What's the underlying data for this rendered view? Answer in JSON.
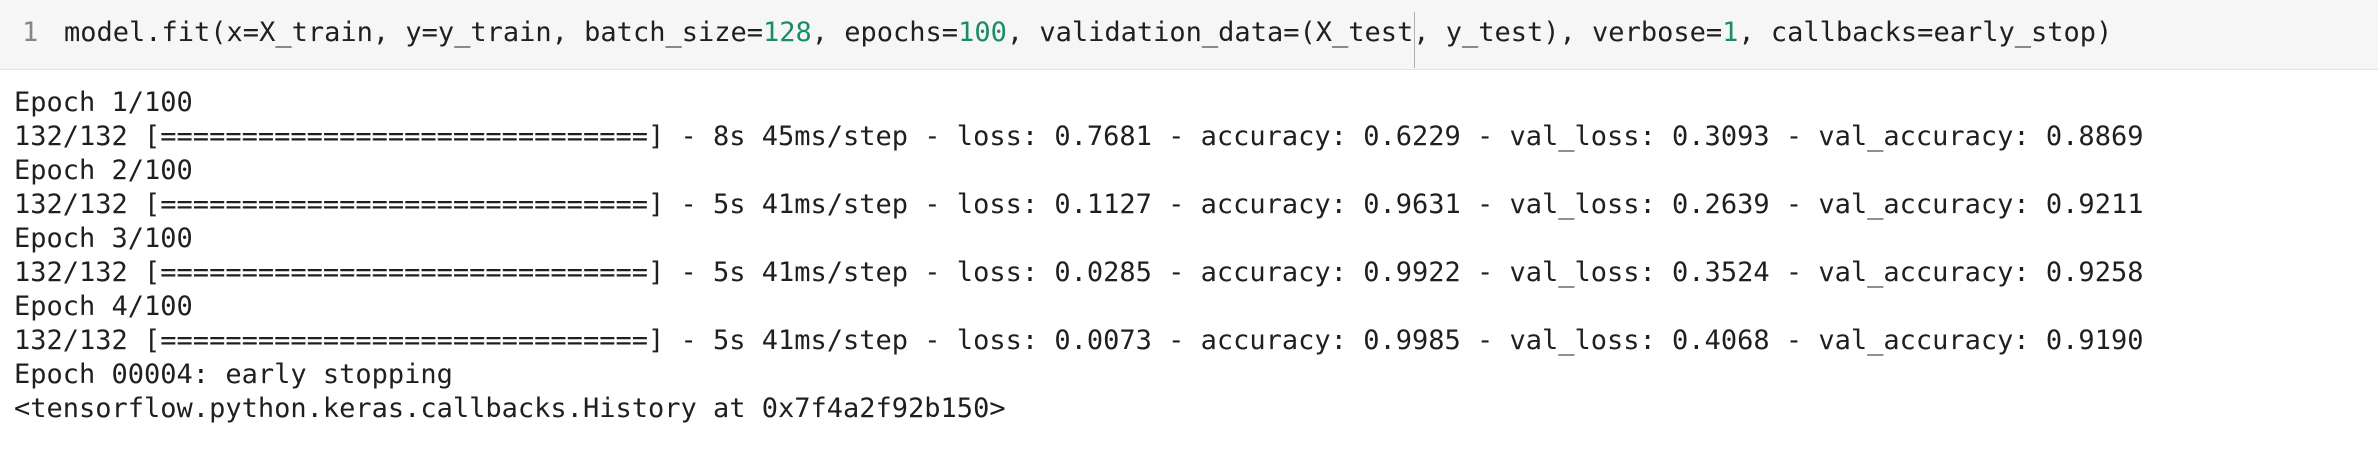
{
  "cell": {
    "line_number": "1",
    "code": {
      "part1": "model.fit(x=X_train, y=y_train, batch_size=",
      "batch_size": "128",
      "part2": ", epochs=",
      "epochs": "100",
      "part3": ", validation_data=(X_test, y_test), verbose=",
      "verbose": "1",
      "part4": ", callbacks=early_stop)"
    }
  },
  "output": {
    "lines": [
      "Epoch 1/100",
      "132/132 [==============================] - 8s 45ms/step - loss: 0.7681 - accuracy: 0.6229 - val_loss: 0.3093 - val_accuracy: 0.8869",
      "Epoch 2/100",
      "132/132 [==============================] - 5s 41ms/step - loss: 0.1127 - accuracy: 0.9631 - val_loss: 0.2639 - val_accuracy: 0.9211",
      "Epoch 3/100",
      "132/132 [==============================] - 5s 41ms/step - loss: 0.0285 - accuracy: 0.9922 - val_loss: 0.3524 - val_accuracy: 0.9258",
      "Epoch 4/100",
      "132/132 [==============================] - 5s 41ms/step - loss: 0.0073 - accuracy: 0.9985 - val_loss: 0.4068 - val_accuracy: 0.9190",
      "Epoch 00004: early stopping",
      "<tensorflow.python.keras.callbacks.History at 0x7f4a2f92b150>"
    ]
  },
  "colors": {
    "number_literal": "#1a8c6a",
    "cell_background": "#f6f6f6",
    "text": "#1f1f1f"
  }
}
